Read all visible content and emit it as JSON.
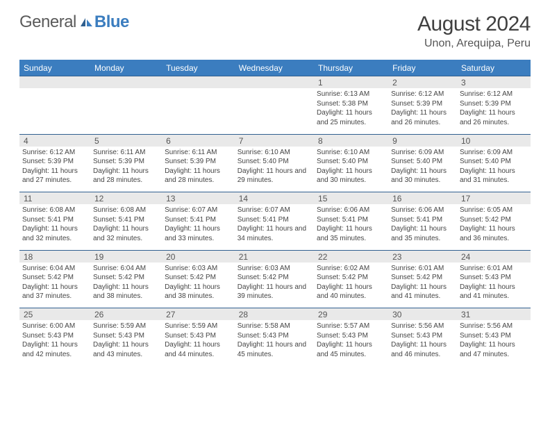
{
  "logo": {
    "text1": "General",
    "text2": "Blue"
  },
  "title": "August 2024",
  "location": "Unon, Arequipa, Peru",
  "colors": {
    "header": "#3b7dbf",
    "daybar": "#e9e9e9",
    "rule": "#2f5f8f",
    "text": "#444444"
  },
  "dow": [
    "Sunday",
    "Monday",
    "Tuesday",
    "Wednesday",
    "Thursday",
    "Friday",
    "Saturday"
  ],
  "weeks": [
    [
      null,
      null,
      null,
      null,
      {
        "n": "1",
        "sr": "6:13 AM",
        "ss": "5:38 PM",
        "dl": "11 hours and 25 minutes."
      },
      {
        "n": "2",
        "sr": "6:12 AM",
        "ss": "5:39 PM",
        "dl": "11 hours and 26 minutes."
      },
      {
        "n": "3",
        "sr": "6:12 AM",
        "ss": "5:39 PM",
        "dl": "11 hours and 26 minutes."
      }
    ],
    [
      {
        "n": "4",
        "sr": "6:12 AM",
        "ss": "5:39 PM",
        "dl": "11 hours and 27 minutes."
      },
      {
        "n": "5",
        "sr": "6:11 AM",
        "ss": "5:39 PM",
        "dl": "11 hours and 28 minutes."
      },
      {
        "n": "6",
        "sr": "6:11 AM",
        "ss": "5:39 PM",
        "dl": "11 hours and 28 minutes."
      },
      {
        "n": "7",
        "sr": "6:10 AM",
        "ss": "5:40 PM",
        "dl": "11 hours and 29 minutes."
      },
      {
        "n": "8",
        "sr": "6:10 AM",
        "ss": "5:40 PM",
        "dl": "11 hours and 30 minutes."
      },
      {
        "n": "9",
        "sr": "6:09 AM",
        "ss": "5:40 PM",
        "dl": "11 hours and 30 minutes."
      },
      {
        "n": "10",
        "sr": "6:09 AM",
        "ss": "5:40 PM",
        "dl": "11 hours and 31 minutes."
      }
    ],
    [
      {
        "n": "11",
        "sr": "6:08 AM",
        "ss": "5:41 PM",
        "dl": "11 hours and 32 minutes."
      },
      {
        "n": "12",
        "sr": "6:08 AM",
        "ss": "5:41 PM",
        "dl": "11 hours and 32 minutes."
      },
      {
        "n": "13",
        "sr": "6:07 AM",
        "ss": "5:41 PM",
        "dl": "11 hours and 33 minutes."
      },
      {
        "n": "14",
        "sr": "6:07 AM",
        "ss": "5:41 PM",
        "dl": "11 hours and 34 minutes."
      },
      {
        "n": "15",
        "sr": "6:06 AM",
        "ss": "5:41 PM",
        "dl": "11 hours and 35 minutes."
      },
      {
        "n": "16",
        "sr": "6:06 AM",
        "ss": "5:41 PM",
        "dl": "11 hours and 35 minutes."
      },
      {
        "n": "17",
        "sr": "6:05 AM",
        "ss": "5:42 PM",
        "dl": "11 hours and 36 minutes."
      }
    ],
    [
      {
        "n": "18",
        "sr": "6:04 AM",
        "ss": "5:42 PM",
        "dl": "11 hours and 37 minutes."
      },
      {
        "n": "19",
        "sr": "6:04 AM",
        "ss": "5:42 PM",
        "dl": "11 hours and 38 minutes."
      },
      {
        "n": "20",
        "sr": "6:03 AM",
        "ss": "5:42 PM",
        "dl": "11 hours and 38 minutes."
      },
      {
        "n": "21",
        "sr": "6:03 AM",
        "ss": "5:42 PM",
        "dl": "11 hours and 39 minutes."
      },
      {
        "n": "22",
        "sr": "6:02 AM",
        "ss": "5:42 PM",
        "dl": "11 hours and 40 minutes."
      },
      {
        "n": "23",
        "sr": "6:01 AM",
        "ss": "5:42 PM",
        "dl": "11 hours and 41 minutes."
      },
      {
        "n": "24",
        "sr": "6:01 AM",
        "ss": "5:43 PM",
        "dl": "11 hours and 41 minutes."
      }
    ],
    [
      {
        "n": "25",
        "sr": "6:00 AM",
        "ss": "5:43 PM",
        "dl": "11 hours and 42 minutes."
      },
      {
        "n": "26",
        "sr": "5:59 AM",
        "ss": "5:43 PM",
        "dl": "11 hours and 43 minutes."
      },
      {
        "n": "27",
        "sr": "5:59 AM",
        "ss": "5:43 PM",
        "dl": "11 hours and 44 minutes."
      },
      {
        "n": "28",
        "sr": "5:58 AM",
        "ss": "5:43 PM",
        "dl": "11 hours and 45 minutes."
      },
      {
        "n": "29",
        "sr": "5:57 AM",
        "ss": "5:43 PM",
        "dl": "11 hours and 45 minutes."
      },
      {
        "n": "30",
        "sr": "5:56 AM",
        "ss": "5:43 PM",
        "dl": "11 hours and 46 minutes."
      },
      {
        "n": "31",
        "sr": "5:56 AM",
        "ss": "5:43 PM",
        "dl": "11 hours and 47 minutes."
      }
    ]
  ],
  "labels": {
    "sunrise": "Sunrise: ",
    "sunset": "Sunset: ",
    "daylight": "Daylight: "
  }
}
